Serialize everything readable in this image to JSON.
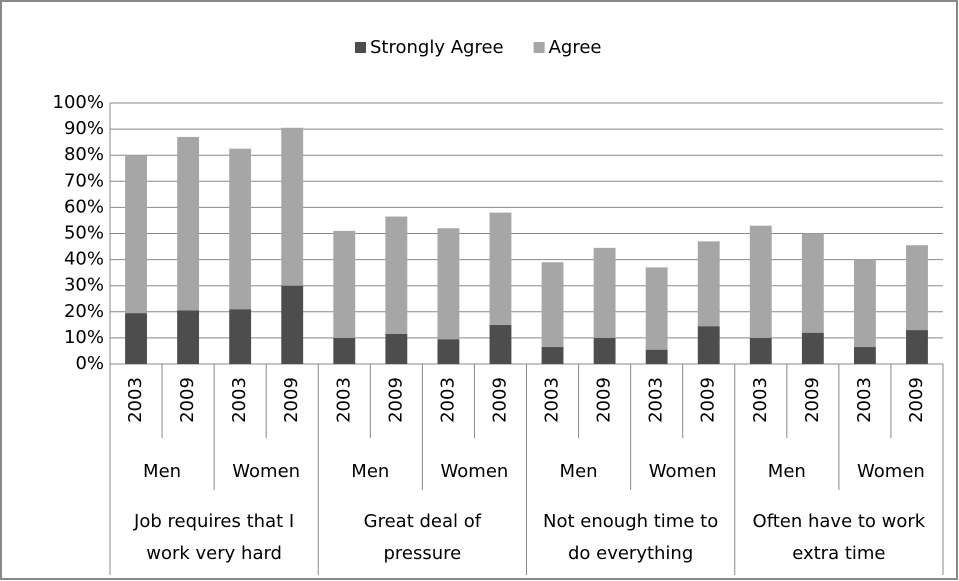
{
  "chart_data": {
    "type": "stacked_bar",
    "legend": "top",
    "grid": true,
    "categories": [
      "2003",
      "2009",
      "2003",
      "2009",
      "2003",
      "2009",
      "2003",
      "2009",
      "2003",
      "2009",
      "2003",
      "2009",
      "2003",
      "2009",
      "2003",
      "2009"
    ],
    "subgroups": [
      "Men",
      "Women",
      "Men",
      "Women",
      "Men",
      "Women",
      "Men",
      "Women"
    ],
    "groups": [
      "Job requires that I work very hard",
      "Great deal of pressure",
      "Not enough time to do everything",
      "Often have to work extra time"
    ],
    "series": [
      {
        "name": "Strongly Agree",
        "color": "#4d4d4d",
        "values": [
          19.5,
          20.5,
          21,
          30,
          10,
          11.5,
          9.5,
          15,
          6.5,
          10,
          5.5,
          14.5,
          10,
          12,
          6.5,
          13
        ]
      },
      {
        "name": "Agree",
        "color": "#a6a6a6",
        "values": [
          60.5,
          66.5,
          61.5,
          60.5,
          41,
          45,
          42.5,
          43,
          32.5,
          34.5,
          31.5,
          32.5,
          43,
          38,
          33.5,
          32.5
        ]
      }
    ],
    "ylim": [
      0,
      100
    ],
    "yticks": [
      {
        "value": 0,
        "label": "0%"
      },
      {
        "value": 10,
        "label": "10%"
      },
      {
        "value": 20,
        "label": "20%"
      },
      {
        "value": 30,
        "label": "30%"
      },
      {
        "value": 40,
        "label": "40%"
      },
      {
        "value": 50,
        "label": "50%"
      },
      {
        "value": 60,
        "label": "60%"
      },
      {
        "value": 70,
        "label": "70%"
      },
      {
        "value": 80,
        "label": "80%"
      },
      {
        "value": 90,
        "label": "90%"
      },
      {
        "value": 100,
        "label": "100%"
      }
    ]
  }
}
